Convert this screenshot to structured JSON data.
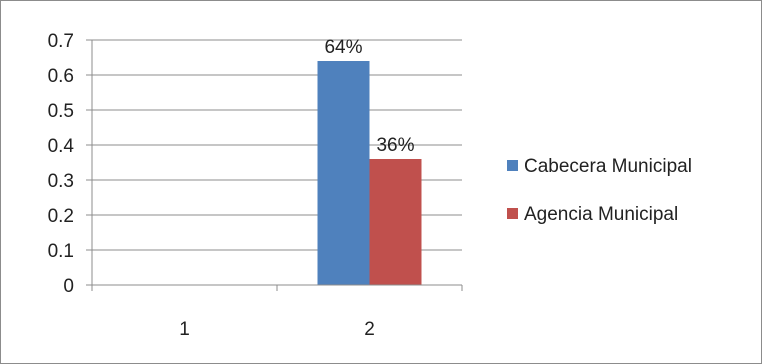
{
  "chart_data": {
    "type": "bar",
    "categories": [
      "1",
      "2"
    ],
    "series": [
      {
        "name": "Cabecera Municipal",
        "values": [
          0,
          0.64
        ],
        "data_labels": [
          "",
          "64%"
        ],
        "color": "#4f81bd"
      },
      {
        "name": "Agencia Municipal",
        "values": [
          0,
          0.36
        ],
        "data_labels": [
          "",
          "36%"
        ],
        "color": "#c0504d"
      }
    ],
    "y_ticks": [
      "0",
      "0.1",
      "0.2",
      "0.3",
      "0.4",
      "0.5",
      "0.6",
      "0.7"
    ],
    "ylim": [
      0,
      0.7
    ],
    "grid": true,
    "legend": {
      "position": "right"
    },
    "colors": {
      "grid": "#8c8c8c",
      "axis": "#8c8c8c"
    }
  }
}
